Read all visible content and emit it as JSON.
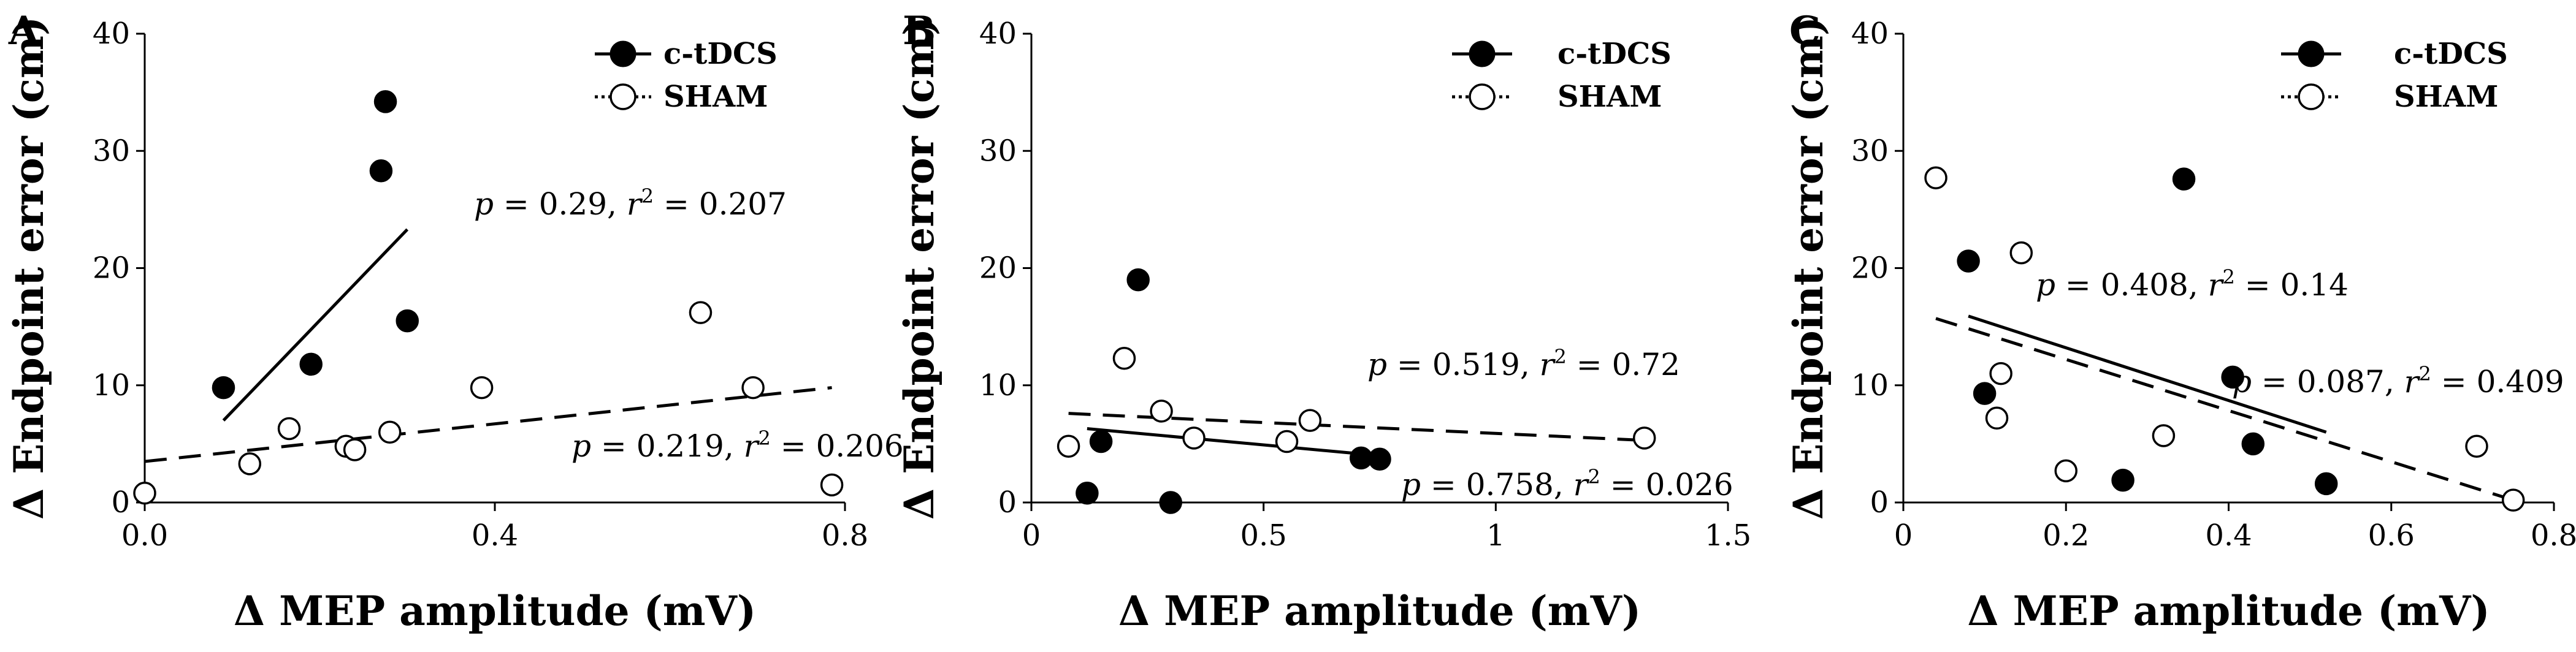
{
  "figure": {
    "series_names": {
      "active": "c-tDCS",
      "sham": "SHAM"
    }
  },
  "chart_data": [
    {
      "type": "scatter",
      "panel": "A",
      "xlabel": "Δ MEP amplitude (mV)",
      "ylabel": "Δ Endpoint error (cm)",
      "xlim": [
        0,
        0.8
      ],
      "ylim": [
        0,
        40
      ],
      "xticks": [
        "0.0",
        "0.4",
        "0.8"
      ],
      "xtick_values": [
        0,
        0.4,
        0.8
      ],
      "yticks": [
        "0",
        "10",
        "20",
        "30",
        "40"
      ],
      "ytick_values": [
        0,
        10,
        20,
        30,
        40
      ],
      "legend": [
        "c-tDCS",
        "SHAM"
      ],
      "series": [
        {
          "name": "c-tDCS",
          "marker": "filled",
          "line": "solid",
          "x": [
            0.09,
            0.19,
            0.27,
            0.275,
            0.3
          ],
          "y": [
            9.8,
            11.8,
            28.3,
            34.2,
            15.5
          ],
          "fit": {
            "x": [
              0.09,
              0.3
            ],
            "y": [
              7.0,
              23.3
            ]
          },
          "annotation": {
            "p": "0.29",
            "r2": "0.207"
          }
        },
        {
          "name": "SHAM",
          "marker": "open",
          "line": "dashed",
          "x": [
            0.0,
            0.12,
            0.165,
            0.23,
            0.24,
            0.28,
            0.385,
            0.635,
            0.695,
            0.785
          ],
          "y": [
            0.8,
            3.3,
            6.3,
            4.8,
            4.5,
            6.0,
            9.8,
            16.2,
            9.8,
            1.5
          ],
          "fit": {
            "x": [
              0.0,
              0.785
            ],
            "y": [
              3.5,
              9.8
            ]
          },
          "annotation": {
            "p": "0.219",
            "r2": "0.206"
          }
        }
      ]
    },
    {
      "type": "scatter",
      "panel": "B",
      "xlabel": "Δ MEP amplitude (mV)",
      "ylabel": "Δ Endpoint error (cm)",
      "xlim": [
        0,
        1.5
      ],
      "ylim": [
        0,
        40
      ],
      "xticks": [
        "0",
        "0.5",
        "1",
        "1.5"
      ],
      "xtick_values": [
        0,
        0.5,
        1,
        1.5
      ],
      "yticks": [
        "0",
        "10",
        "20",
        "30",
        "40"
      ],
      "ytick_values": [
        0,
        10,
        20,
        30,
        40
      ],
      "legend": [
        "c-tDCS",
        "SHAM"
      ],
      "series": [
        {
          "name": "c-tDCS",
          "marker": "filled",
          "line": "solid",
          "x": [
            0.12,
            0.15,
            0.23,
            0.3,
            0.71,
            0.75
          ],
          "y": [
            0.8,
            5.2,
            19.0,
            0.0,
            3.8,
            3.7
          ],
          "fit": {
            "x": [
              0.12,
              0.75
            ],
            "y": [
              6.3,
              4.0
            ]
          },
          "annotation": {
            "p": "0.758",
            "r2": "0.026"
          }
        },
        {
          "name": "SHAM",
          "marker": "open",
          "line": "dashed",
          "x": [
            0.08,
            0.2,
            0.28,
            0.35,
            0.55,
            0.6,
            1.32
          ],
          "y": [
            4.8,
            12.3,
            7.8,
            5.5,
            5.2,
            7.0,
            5.5
          ],
          "fit": {
            "x": [
              0.08,
              1.32
            ],
            "y": [
              7.6,
              5.3
            ]
          },
          "annotation": {
            "p": "0.519",
            "r2": "0.72"
          }
        }
      ]
    },
    {
      "type": "scatter",
      "panel": "C",
      "xlabel": "Δ MEP amplitude (mV)",
      "ylabel": "Δ Endpoint error (cm)",
      "xlim": [
        0,
        0.8
      ],
      "ylim": [
        0,
        40
      ],
      "xticks": [
        "0",
        "0.2",
        "0.4",
        "0.6",
        "0.8"
      ],
      "xtick_values": [
        0,
        0.2,
        0.4,
        0.6,
        0.8
      ],
      "yticks": [
        "0",
        "10",
        "20",
        "30",
        "40"
      ],
      "ytick_values": [
        0,
        10,
        20,
        30,
        40
      ],
      "legend": [
        "c-tDCS",
        "SHAM"
      ],
      "series": [
        {
          "name": "c-tDCS",
          "marker": "filled",
          "line": "solid",
          "x": [
            0.08,
            0.1,
            0.27,
            0.345,
            0.405,
            0.43,
            0.52
          ],
          "y": [
            20.6,
            9.3,
            1.9,
            27.6,
            10.7,
            5.0,
            1.6
          ],
          "fit": {
            "x": [
              0.08,
              0.52
            ],
            "y": [
              15.9,
              6.0
            ]
          },
          "annotation": {
            "p": "0.408",
            "r2": "0.14"
          }
        },
        {
          "name": "SHAM",
          "marker": "open",
          "line": "dashed",
          "x": [
            0.04,
            0.115,
            0.12,
            0.145,
            0.2,
            0.32,
            0.705,
            0.75
          ],
          "y": [
            27.7,
            7.2,
            11.0,
            21.3,
            2.7,
            5.7,
            4.8,
            0.2
          ],
          "fit": {
            "x": [
              0.04,
              0.75
            ],
            "y": [
              15.7,
              0.2
            ]
          },
          "annotation": {
            "p": "0.087",
            "r2": "0.409"
          }
        }
      ]
    }
  ]
}
